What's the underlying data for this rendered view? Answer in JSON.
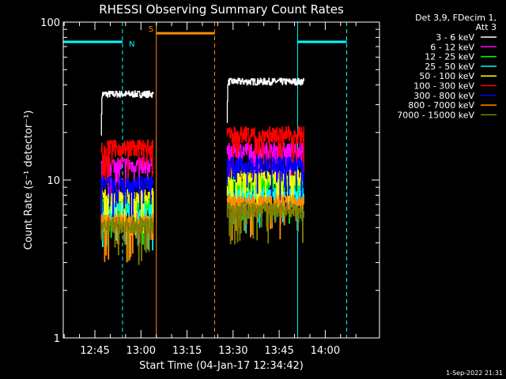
{
  "chart_data": {
    "type": "line",
    "title": "RHESSI Observing Summary Count Rates",
    "xlabel": "Start Time (04-Jan-17 12:34:42)",
    "ylabel": "Count Rate (s⁻¹ detector⁻¹)",
    "ylim": [
      1,
      100
    ],
    "y_scale": "log",
    "x_range_minutes": [
      "12:34:42",
      "14:17:40"
    ],
    "x_ticks": [
      "12:45",
      "13:00",
      "13:15",
      "13:30",
      "13:45",
      "14:00"
    ],
    "y_ticks": [
      "1",
      "10",
      "100"
    ],
    "grid": false,
    "legend": {
      "placement": "top-right",
      "header": [
        "Det 3,9, FDecim 1,",
        "Att 3"
      ]
    },
    "series": [
      {
        "name": "3 - 6 keV",
        "color": "#ffffff",
        "segments": [
          {
            "start": "12:47",
            "end": "13:04",
            "level": 35
          },
          {
            "start": "13:28",
            "end": "13:53",
            "level": 42
          }
        ]
      },
      {
        "name": "6 - 12 keV",
        "color": "#ff00ff",
        "segments": [
          {
            "start": "12:47",
            "end": "13:04",
            "level": 12.5
          },
          {
            "start": "13:28",
            "end": "13:53",
            "level": 15.5
          }
        ]
      },
      {
        "name": "12 - 25 keV",
        "color": "#00ff00",
        "segments": [
          {
            "start": "12:47",
            "end": "13:04",
            "level": 7
          },
          {
            "start": "13:28",
            "end": "13:53",
            "level": 9.5
          }
        ]
      },
      {
        "name": "25 - 50 keV",
        "color": "#00ffff",
        "segments": [
          {
            "start": "12:47",
            "end": "13:04",
            "level": 6.5
          },
          {
            "start": "13:28",
            "end": "13:53",
            "level": 8
          }
        ]
      },
      {
        "name": "50 - 100 keV",
        "color": "#ffff00",
        "segments": [
          {
            "start": "12:47",
            "end": "13:04",
            "level": 8
          },
          {
            "start": "13:28",
            "end": "13:53",
            "level": 10.5
          }
        ]
      },
      {
        "name": "100 - 300 keV",
        "color": "#ff0000",
        "segments": [
          {
            "start": "12:47",
            "end": "13:04",
            "level": 16
          },
          {
            "start": "13:28",
            "end": "13:53",
            "level": 19.5
          }
        ]
      },
      {
        "name": "300 - 800 keV",
        "color": "#0000ff",
        "segments": [
          {
            "start": "12:47",
            "end": "13:04",
            "level": 9.5
          },
          {
            "start": "13:28",
            "end": "13:53",
            "level": 12.5
          }
        ]
      },
      {
        "name": "800 - 7000 keV",
        "color": "#ff8c00",
        "segments": [
          {
            "start": "12:47",
            "end": "13:04",
            "level": 5.5
          },
          {
            "start": "13:28",
            "end": "13:53",
            "level": 7.2
          }
        ]
      },
      {
        "name": "7000 - 15000 keV",
        "color": "#808000",
        "segments": [
          {
            "start": "12:47",
            "end": "13:04",
            "level": 5.2
          },
          {
            "start": "13:28",
            "end": "13:53",
            "level": 6.5
          }
        ]
      }
    ],
    "annotations": [
      {
        "label": "N",
        "color": "#00ffff",
        "bar_ranges": [
          [
            "12:34:42",
            "12:54:00"
          ],
          [
            "13:51:00",
            "14:07:00"
          ]
        ],
        "solid_lines": [
          "12:34:42",
          "13:51:00"
        ],
        "dashed_lines": [
          "12:54:00",
          "14:07:00"
        ],
        "bar_level": 75
      },
      {
        "label": "S",
        "color": "#ff8c00",
        "bar_ranges": [
          [
            "13:05:00",
            "13:24:00"
          ]
        ],
        "solid_lines": [
          "13:05:00"
        ],
        "dashed_lines": [
          "13:24:00"
        ],
        "bar_level": 85
      }
    ],
    "timestamp": "1-Sep-2022 21:31"
  }
}
